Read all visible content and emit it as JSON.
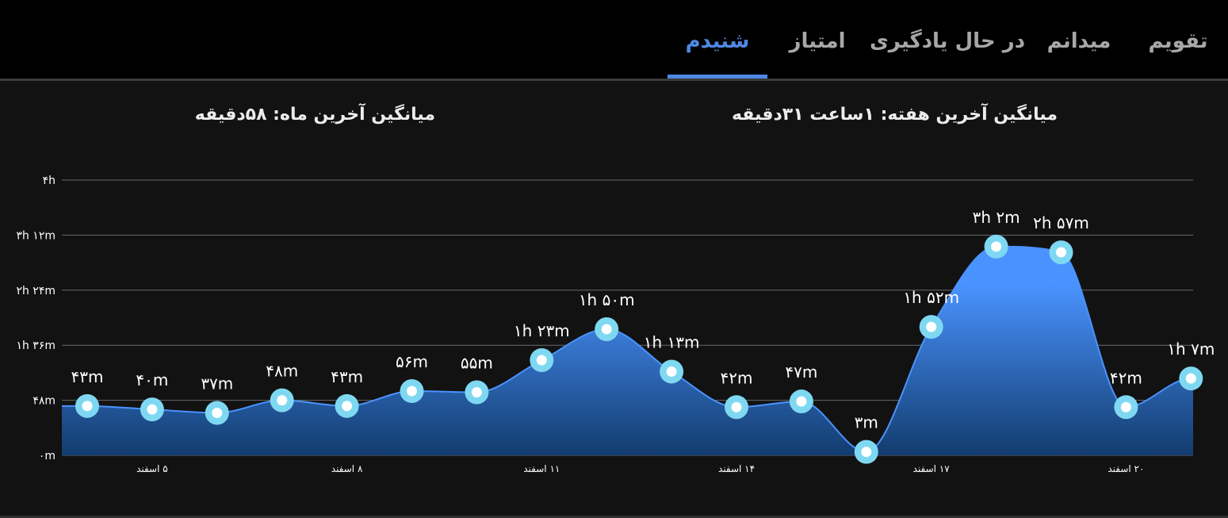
{
  "tabs": [
    {
      "label": "تقویم",
      "active": false
    },
    {
      "label": "میدانم",
      "active": false
    },
    {
      "label": "در حال یادگیری",
      "active": false
    },
    {
      "label": "امتیاز",
      "active": false
    },
    {
      "label": "شنیدم",
      "active": true
    }
  ],
  "averages": {
    "week": "میانگین آخرین هفته: ۱ساعت  ۳۱دقیقه",
    "month": "میانگین آخرین ماه: ۵۸دقیقه"
  },
  "colors": {
    "accent": "#4f88e3",
    "area_top": "#4a93ff",
    "area_bottom": "#123c6e",
    "marker": "#7fd8f2",
    "grid": "#6a6a6a"
  },
  "chart_data": {
    "type": "area",
    "unit": "minutes",
    "ylim": [
      0,
      240
    ],
    "yticks": [
      0,
      48,
      96,
      144,
      192,
      240
    ],
    "ytick_labels": [
      "۰m",
      "۴۸m",
      "۱h ۳۶m",
      "۲h ۲۴m",
      "۳h ۱۲m",
      "۴h"
    ],
    "x_tick_labels": [
      "۵ اسفند",
      "۸ اسفند",
      "۱۱ اسفند",
      "۱۴ اسفند",
      "۱۷ اسفند",
      "۲۰ اسفند"
    ],
    "x_tick_positions": [
      5,
      8,
      11,
      14,
      17,
      20
    ],
    "series": [
      {
        "x": [
          4,
          5,
          6,
          7,
          8,
          9,
          10,
          11,
          12,
          13,
          14,
          15,
          16,
          17,
          18,
          19,
          20,
          21
        ],
        "values": [
          43,
          40,
          37,
          48,
          43,
          56,
          55,
          83,
          110,
          73,
          42,
          47,
          3,
          112,
          182,
          177,
          42,
          67
        ],
        "labels": [
          "۴۳m",
          "۴۰m",
          "۳۷m",
          "۴۸m",
          "۴۳m",
          "۵۶m",
          "۵۵m",
          "۱h ۲۳m",
          "۱h ۵۰m",
          "۱h ۱۳m",
          "۴۲m",
          "۴۷m",
          "۳m",
          "۱h ۵۲m",
          "۳h ۲m",
          "۲h ۵۷m",
          "۴۲m",
          "۱h ۷m"
        ]
      }
    ],
    "grid": true
  }
}
